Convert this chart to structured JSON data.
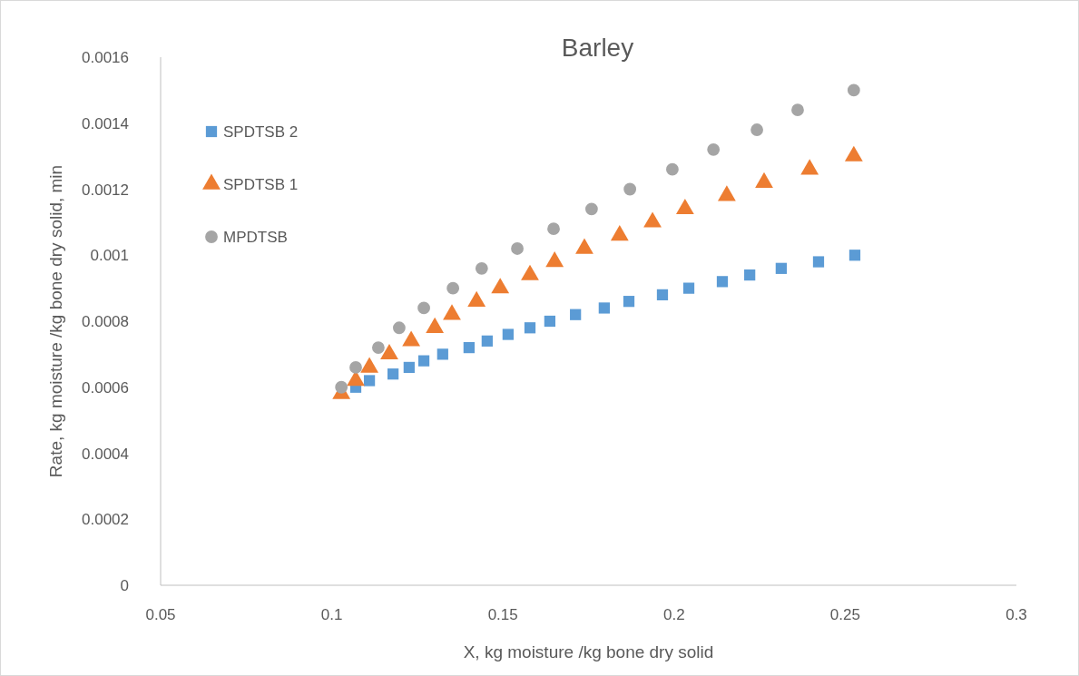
{
  "chart_data": {
    "type": "scatter",
    "title": "Barley",
    "xlabel": "X, kg moisture /kg bone dry solid",
    "ylabel": "Rate, kg moisture /kg bone dry solid, min",
    "xlim": [
      0.05,
      0.3
    ],
    "xticks": [
      0.05,
      0.1,
      0.15,
      0.2,
      0.25,
      0.3
    ],
    "ylim": [
      0,
      0.0016
    ],
    "yticks": [
      0,
      0.0002,
      0.0004,
      0.0006,
      0.0008,
      0.001,
      0.0012,
      0.0014,
      0.0016
    ],
    "grid": false,
    "legend": "top left",
    "series": [
      {
        "name": "SPDTSB 2",
        "color": "#5b9bd5",
        "marker": "square",
        "x": [
          0.107,
          0.111,
          0.1179,
          0.1226,
          0.1269,
          0.1324,
          0.1401,
          0.1454,
          0.1515,
          0.1579,
          0.1637,
          0.1712,
          0.1796,
          0.1868,
          0.1966,
          0.2043,
          0.2141,
          0.2221,
          0.2313,
          0.2422,
          0.2528
        ],
        "values": [
          0.0006,
          0.00062,
          0.00064,
          0.00066,
          0.00068,
          0.0007,
          0.00072,
          0.00074,
          0.00076,
          0.00078,
          0.0008,
          0.00082,
          0.00084,
          0.00086,
          0.00088,
          0.0009,
          0.00092,
          0.00094,
          0.00096,
          0.00098,
          0.001
        ]
      },
      {
        "name": "SPDTSB 1",
        "color": "#ed7d31",
        "marker": "triangle",
        "x": [
          0.1028,
          0.107,
          0.111,
          0.1168,
          0.1232,
          0.1301,
          0.1351,
          0.1423,
          0.1492,
          0.1579,
          0.1651,
          0.1738,
          0.1841,
          0.1937,
          0.2032,
          0.2154,
          0.2263,
          0.2396,
          0.2525
        ],
        "values": [
          0.00058,
          0.00062,
          0.00066,
          0.0007,
          0.00074,
          0.00078,
          0.00082,
          0.00086,
          0.0009,
          0.00094,
          0.00098,
          0.00102,
          0.00106,
          0.0011,
          0.00114,
          0.00118,
          0.00122,
          0.00126,
          0.0013
        ]
      },
      {
        "name": "MPDTSB",
        "color": "#a5a5a5",
        "marker": "circle",
        "x": [
          0.1028,
          0.107,
          0.1136,
          0.1197,
          0.1269,
          0.1354,
          0.1438,
          0.1542,
          0.1648,
          0.1759,
          0.1871,
          0.1995,
          0.2115,
          0.2242,
          0.2361,
          0.2525
        ],
        "values": [
          0.0006,
          0.00066,
          0.00072,
          0.00078,
          0.00084,
          0.0009,
          0.00096,
          0.00102,
          0.00108,
          0.00114,
          0.0012,
          0.00126,
          0.00132,
          0.00138,
          0.00144,
          0.0015
        ]
      }
    ]
  }
}
